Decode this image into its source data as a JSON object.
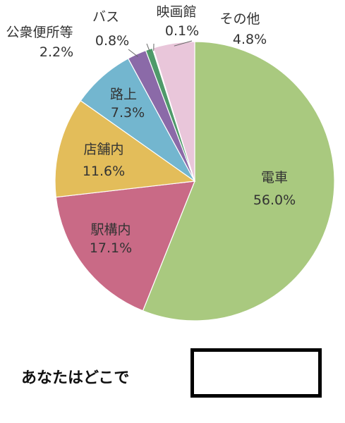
{
  "chart_data": {
    "type": "pie",
    "title": "",
    "start": "top",
    "direction": "clockwise",
    "slices": [
      {
        "label": "電車",
        "value": 56.0,
        "display": "56.0%",
        "color": "#a9c97f"
      },
      {
        "label": "駅構内",
        "value": 17.1,
        "display": "17.1%",
        "color": "#c96a86"
      },
      {
        "label": "店舗内",
        "value": 11.6,
        "display": "11.6%",
        "color": "#e3bd5a"
      },
      {
        "label": "路上",
        "value": 7.3,
        "display": "7.3%",
        "color": "#73b6cf"
      },
      {
        "label": "公衆便所等",
        "value": 2.2,
        "display": "2.2%",
        "color": "#8b6aa8"
      },
      {
        "label": "バス",
        "value": 0.8,
        "display": "0.8%",
        "color": "#4f9a6a"
      },
      {
        "label": "映画館",
        "value": 0.1,
        "display": "0.1%",
        "color": "#d9d9d9"
      },
      {
        "label": "その他",
        "value": 4.8,
        "display": "4.8%",
        "color": "#e9c6da"
      }
    ]
  },
  "question": {
    "text": "あなたはどこで"
  }
}
